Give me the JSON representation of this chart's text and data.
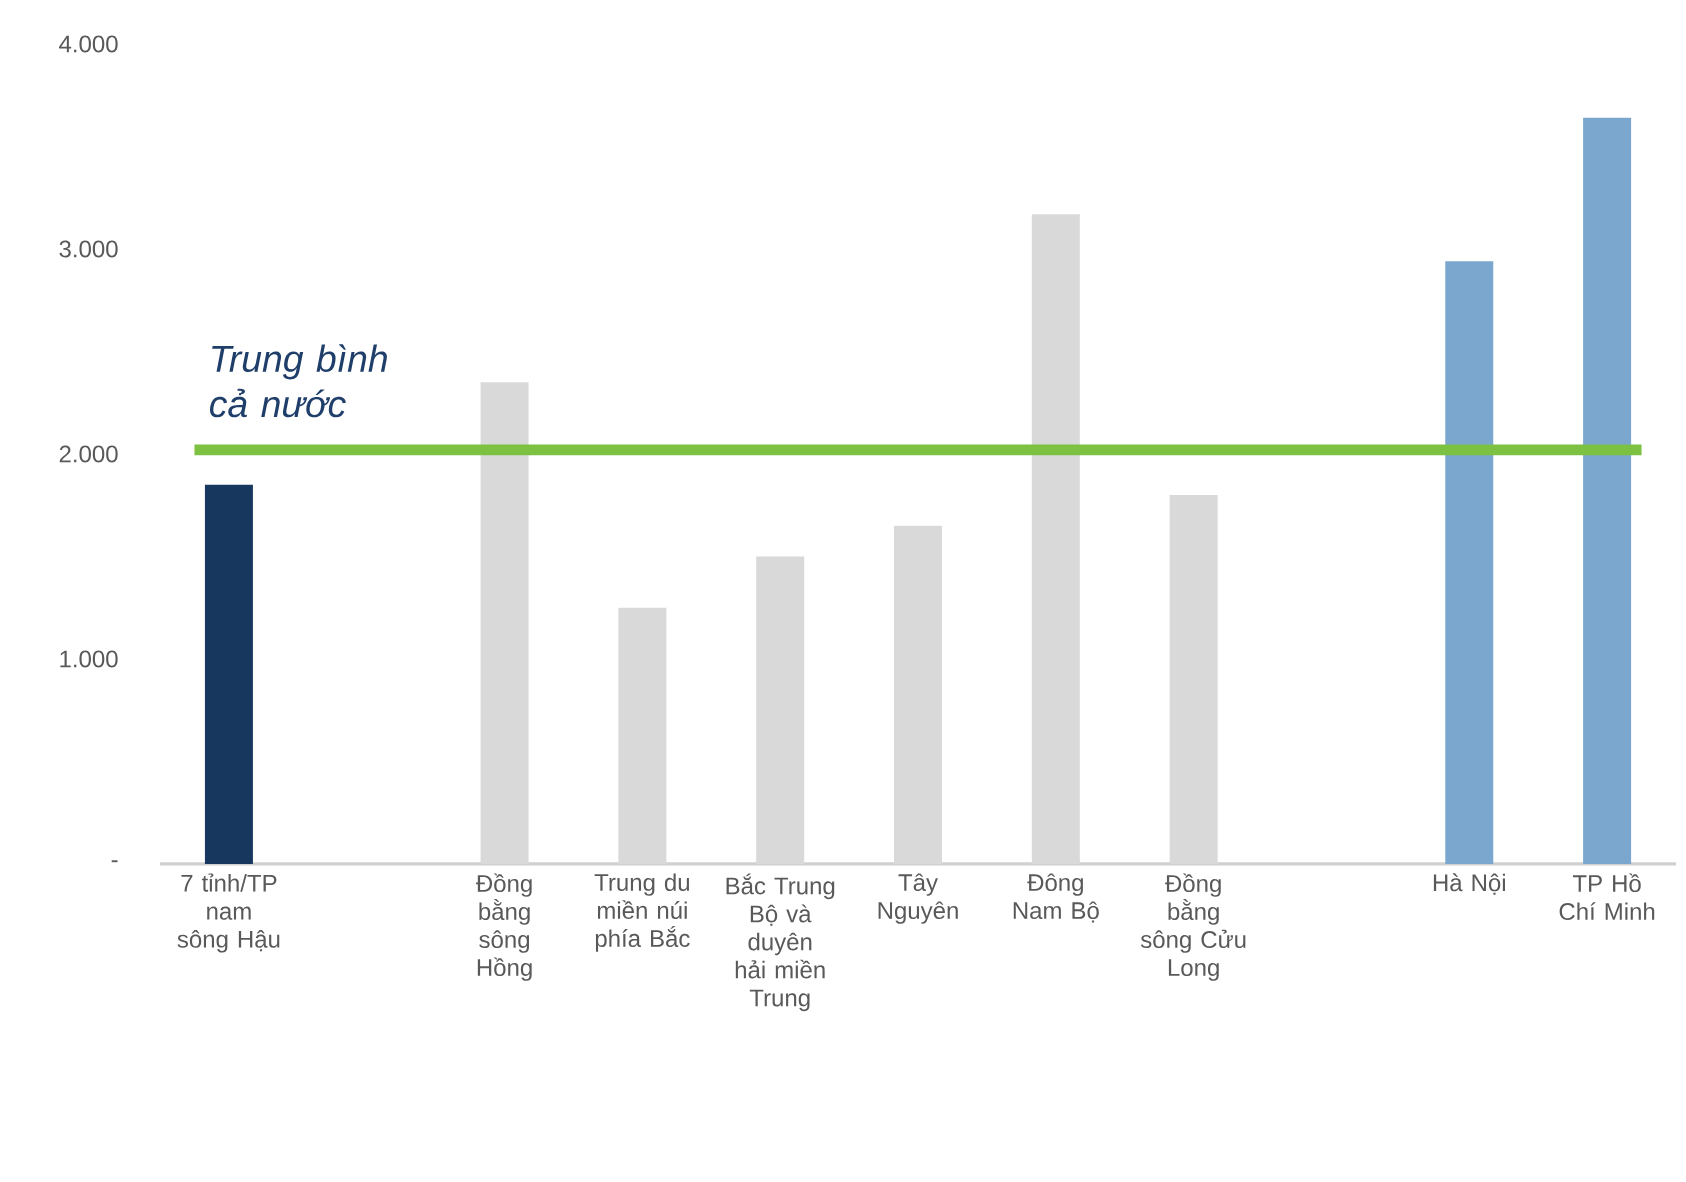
{
  "chart_data": {
    "type": "bar",
    "categories": [
      "7 tỉnh/TP nam sông Hậu",
      null,
      "Đồng bằng sông Hồng",
      "Trung du miền núi phía Bắc",
      "Bắc Trung Bộ và duyên hải miền Trung",
      "Tây Nguyên",
      "Đông Nam Bộ",
      "Đồng bằng sông Cửu Long",
      null,
      "Hà Nội",
      "TP Hồ Chí Minh"
    ],
    "values": [
      1850,
      null,
      2350,
      1250,
      1500,
      1650,
      3170,
      1800,
      null,
      2940,
      3640
    ],
    "colors": [
      "#17375e",
      null,
      "#d9d9d9",
      "#d9d9d9",
      "#d9d9d9",
      "#d9d9d9",
      "#d9d9d9",
      "#d9d9d9",
      null,
      "#7ba7cf",
      "#7ba7cf"
    ],
    "ylim": [
      0,
      4000
    ],
    "yticks": [
      {
        "value": 0,
        "label": "-"
      },
      {
        "value": 1000,
        "label": "1.000"
      },
      {
        "value": 2000,
        "label": "2.000"
      },
      {
        "value": 3000,
        "label": "3.000"
      },
      {
        "value": 4000,
        "label": "4.000"
      }
    ],
    "ref_lines": [
      {
        "axis": "y",
        "value": 2020,
        "label": "Trung bình cả nước",
        "color": "#7dc142"
      }
    ]
  }
}
